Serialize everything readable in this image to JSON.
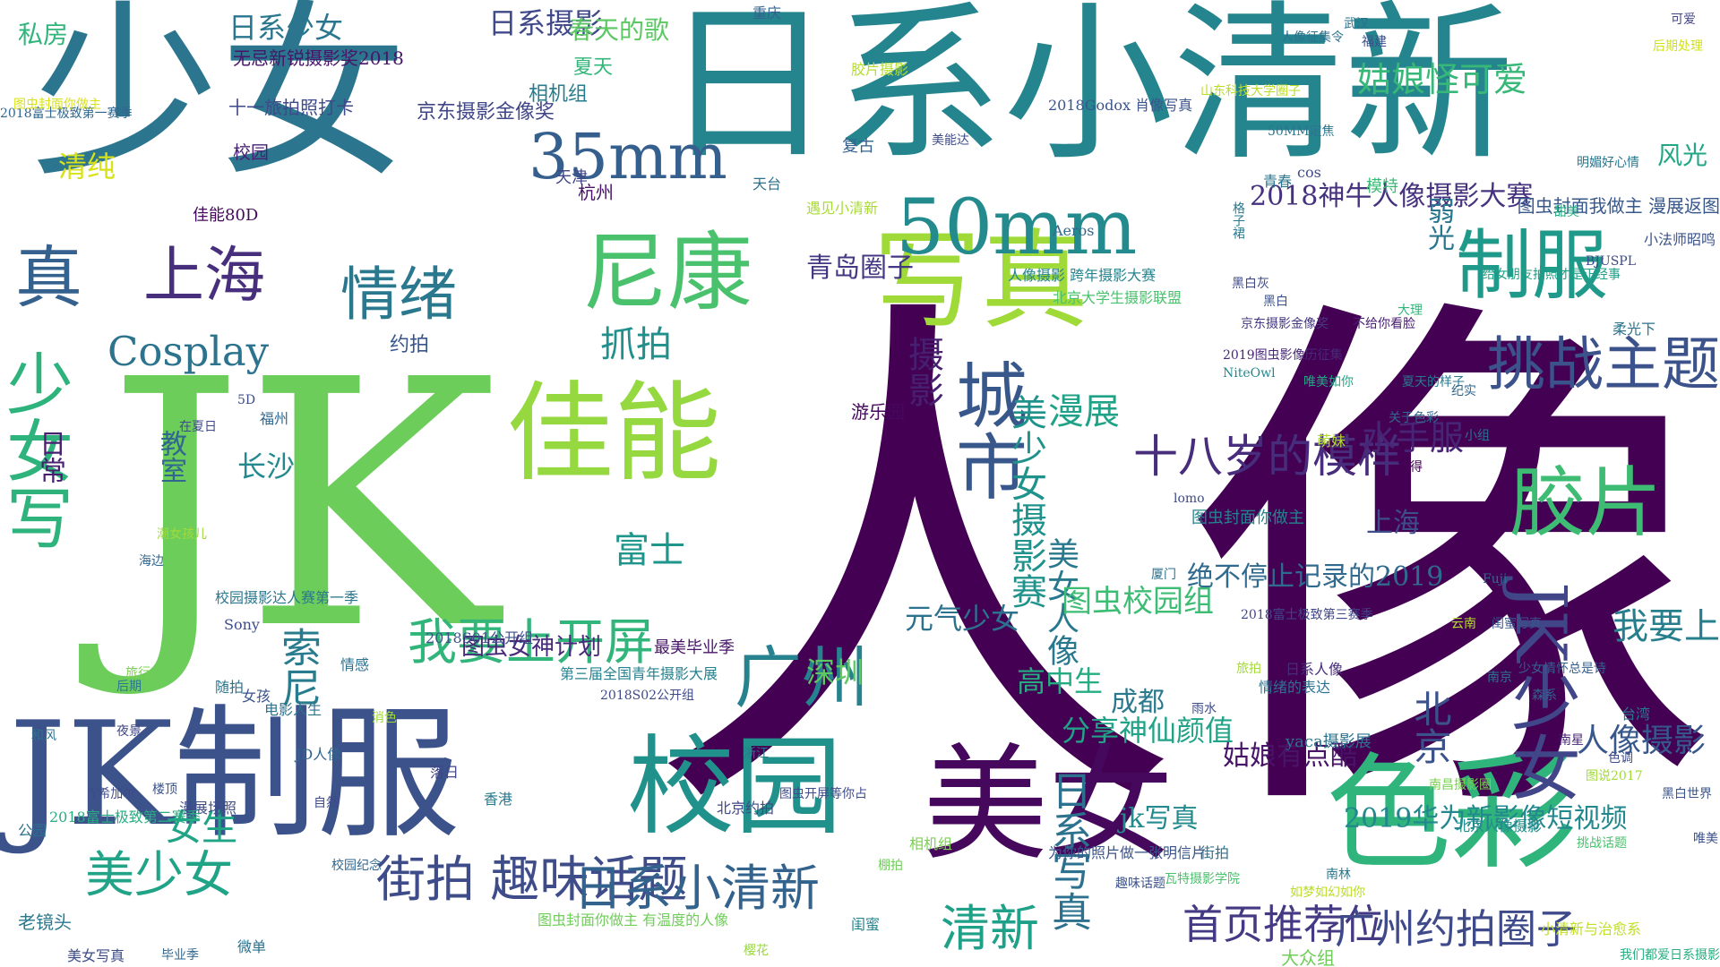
{
  "wordcloud": {
    "words": [
      "人像",
      "JK",
      "少女",
      "日系小清新",
      "JK制服",
      "美女",
      "色彩",
      "校园",
      "写真",
      "佳能",
      "尼康",
      "真",
      "少女写",
      "50mm",
      "制服",
      "胶片",
      "JK少女",
      "城市",
      "35mm",
      "广州",
      "上海",
      "情绪",
      "挑战主题",
      "美少女",
      "街拍 趣味话题",
      "日系小清新",
      "清新",
      "Cosplay",
      "我要上开屏",
      "索尼",
      "北京",
      "我要上",
      "首页推荐位",
      "广州约拍圈子",
      "日系写真",
      "十八岁的模样",
      "姑娘怪可爱",
      "抓拍",
      "富士",
      "美少女摄影赛",
      "摄影",
      "漫展",
      "女生",
      "水手服",
      "人像摄影",
      "日系少女",
      "日系摄影",
      "日常",
      "清纯",
      "私房",
      "深圳",
      "分享神仙颜值",
      "成都",
      "姑娘有点酷",
      "绝不停止记录的2019",
      "美女人像",
      "图虫校园组",
      "2018神牛人像摄影大赛",
      "弱光",
      "风光",
      "图虫封面我做主 漫展返图",
      "长沙",
      "教室",
      "约拍",
      "高中生",
      "元气少女",
      "jk写真",
      "2019华为新影像短视频",
      "上海",
      "大众组",
      "青岛圈子",
      "图虫女神计划",
      "春天的歌",
      "无忌新锐摄影奖2018",
      "校园",
      "十一旅拍照打卡",
      "佳能80D",
      "京东摄影金像奖",
      "相机组",
      "夏天",
      "重庆",
      "杭州",
      "天津",
      "天台",
      "胶片摄影",
      "美能达",
      "2018Godox 肖像写真",
      "人像摄影 跨年摄影大赛",
      "Aeros",
      "遇见小清新",
      "复古",
      "游乐园",
      "北京大学生摄影联盟",
      "山东科技大学圈子",
      "50MM定焦",
      "人像征集令",
      "武汉",
      "福建",
      "关于色彩",
      "宾得",
      "模特",
      "cos",
      "青春",
      "格子裙",
      "后期处理",
      "可爱",
      "明媚好心情",
      "甜美",
      "小法师昭鸣",
      "给女朋友拍照才是正经事",
      "BJUSPL",
      "柔光下",
      "纪实",
      "小组",
      "图虫封面你做主",
      "lomo",
      "萌妹",
      "唯美如你",
      "NiteOwl",
      "2019图虫影像历征集",
      "京东摄影金像奖",
      "黑白",
      "黑白灰",
      "大理",
      "不给你看脸",
      "夏天的样子",
      "厦门",
      "雨水",
      "2018富士极致第三赛季",
      "日系人像",
      "旅拍",
      "情绪的表达",
      "yaca摄影展",
      "如梦如幻如你",
      "南林",
      "南昌摄影圈",
      "云南",
      "南京",
      "闺蜜写真",
      "Fuji",
      "少女情怀总是诗",
      "森系",
      "南星",
      "台湾",
      "色调",
      "图说2017",
      "黑白世界",
      "北京人像摄影",
      "唯美",
      "挑战话题",
      "小清新与治愈系",
      "我们都爱日系摄影",
      "街拍",
      "趣味话题",
      "瓦特摄影学院",
      "为你的照片做一张明信片",
      "相机组",
      "棚拍",
      "闺蜜",
      "樱花",
      "图虫开屏等你占",
      "北京约拍",
      "浙江",
      "最美毕业季",
      "2018S02公开组",
      "第三届全国青年摄影大展",
      "图虫封面你做主 有温度的人像",
      "香港",
      "落日",
      "2018S01公开组",
      "情感",
      "消色",
      "校园纪念",
      "自然",
      "JD人像",
      "电影人生",
      "女孩",
      "随拍",
      "Sony",
      "校园摄影达人赛第一季",
      "漫展场照",
      "楼顶",
      "后期",
      "旅行",
      "海边",
      "潮女孩儿",
      "在夏日",
      "福州",
      "5D",
      "Y希加尔",
      "夜景",
      "2018富士极致第二赛季",
      "和风",
      "公园",
      "老镜头",
      "美女写真",
      "微单",
      "毕业季",
      "2018富士极致第一赛季",
      "图虫封面你做主"
    ],
    "rotated_words": [
      "真",
      "少女写",
      "JK少女",
      "索尼",
      "北京",
      "广州约拍圈子",
      "美少女摄影赛",
      "摄影",
      "绝不停止记录的2019",
      "2018神牛人像摄影大赛",
      "图虫封面我做主 漫展返图",
      "我要上开屏",
      "我们都爱日系摄影",
      "街拍",
      "趣味话题",
      "格子裙",
      "日系摄影"
    ],
    "palette": [
      "#440154",
      "#3b528b",
      "#21918c",
      "#5ec962",
      "#fde725"
    ]
  }
}
